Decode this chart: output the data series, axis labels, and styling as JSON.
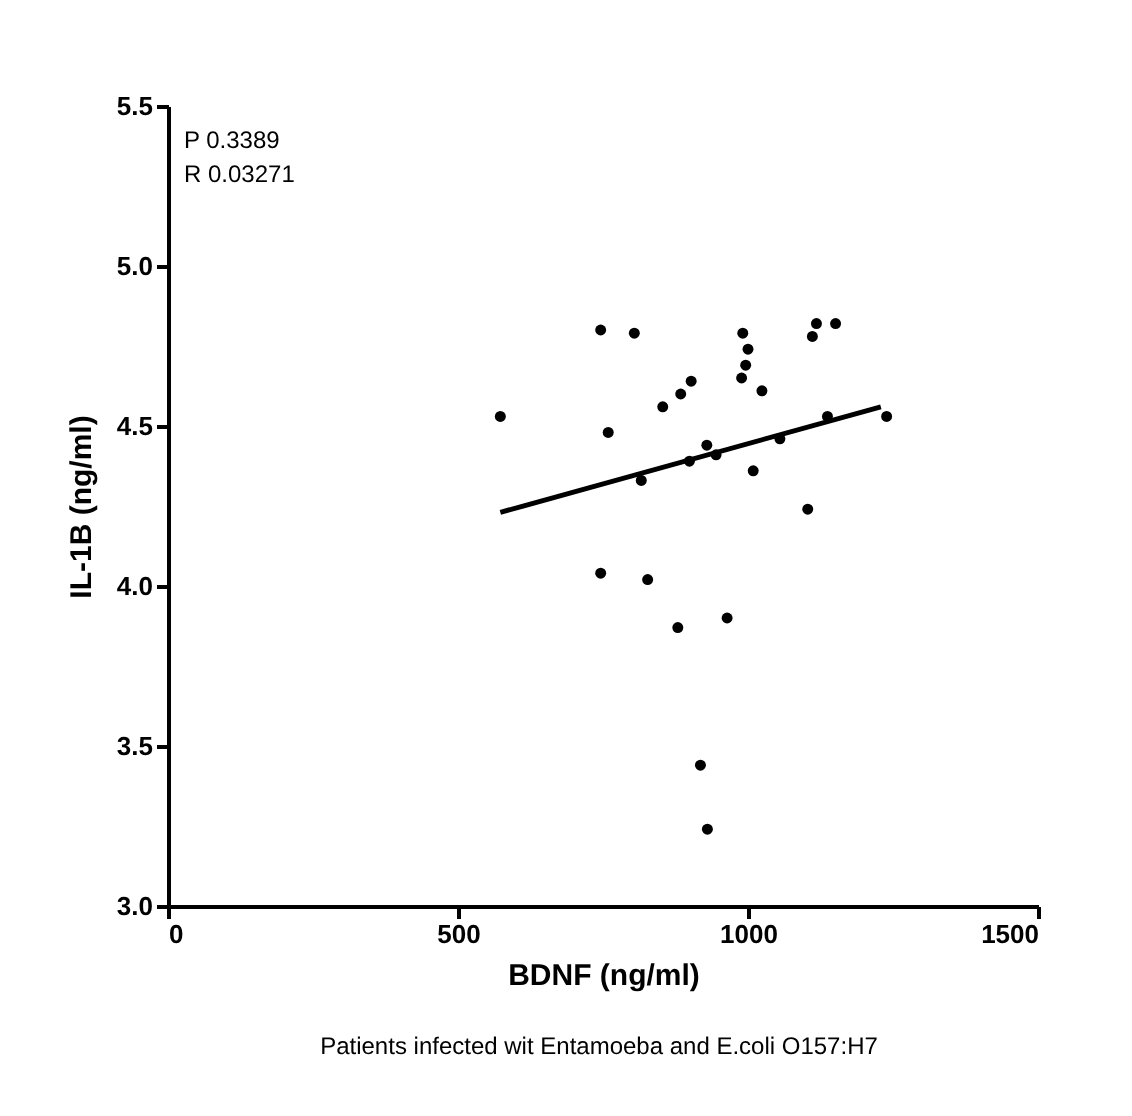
{
  "chart_data": {
    "type": "scatter",
    "xlabel": "BDNF (ng/ml)",
    "ylabel": "IL-1B (ng/ml)",
    "annotations": [
      "P 0.3389",
      "R 0.03271",
      "Patients infected wit Entamoeba and E.coli O157:H7"
    ],
    "xlim": [
      0,
      1500
    ],
    "xticks": [
      0,
      500,
      1000,
      1500
    ],
    "ylim": [
      3,
      5.5
    ],
    "yticks": [
      {
        "value": 3,
        "label": "3.0"
      },
      3.5,
      {
        "value": 4,
        "label": "4.0"
      },
      4.5,
      {
        "value": 5,
        "label": "5.0"
      },
      5.5
    ],
    "grid": false,
    "series": [
      {
        "marker": "circle",
        "color": "#000000",
        "x": [
          573,
          746,
          804,
          991,
          1000,
          1118,
          1151,
          1111,
          996,
          989,
          1024,
          902,
          884,
          853,
          759,
          1137,
          1239,
          1055,
          929,
          945,
          899,
          816,
          1009,
          1103,
          746,
          827,
          964,
          879,
          918,
          930
        ],
        "values": [
          4.53,
          4.8,
          4.79,
          4.79,
          4.74,
          4.82,
          4.82,
          4.78,
          4.69,
          4.65,
          4.61,
          4.64,
          4.6,
          4.56,
          4.48,
          4.53,
          4.53,
          4.46,
          4.44,
          4.41,
          4.39,
          4.33,
          4.36,
          4.24,
          4.04,
          4.02,
          3.9,
          3.87,
          3.44,
          3.24
        ]
      },
      {
        "type": "line",
        "color": "#000000",
        "x": [
          573,
          1229
        ],
        "values": [
          4.23,
          4.56
        ]
      }
    ]
  }
}
